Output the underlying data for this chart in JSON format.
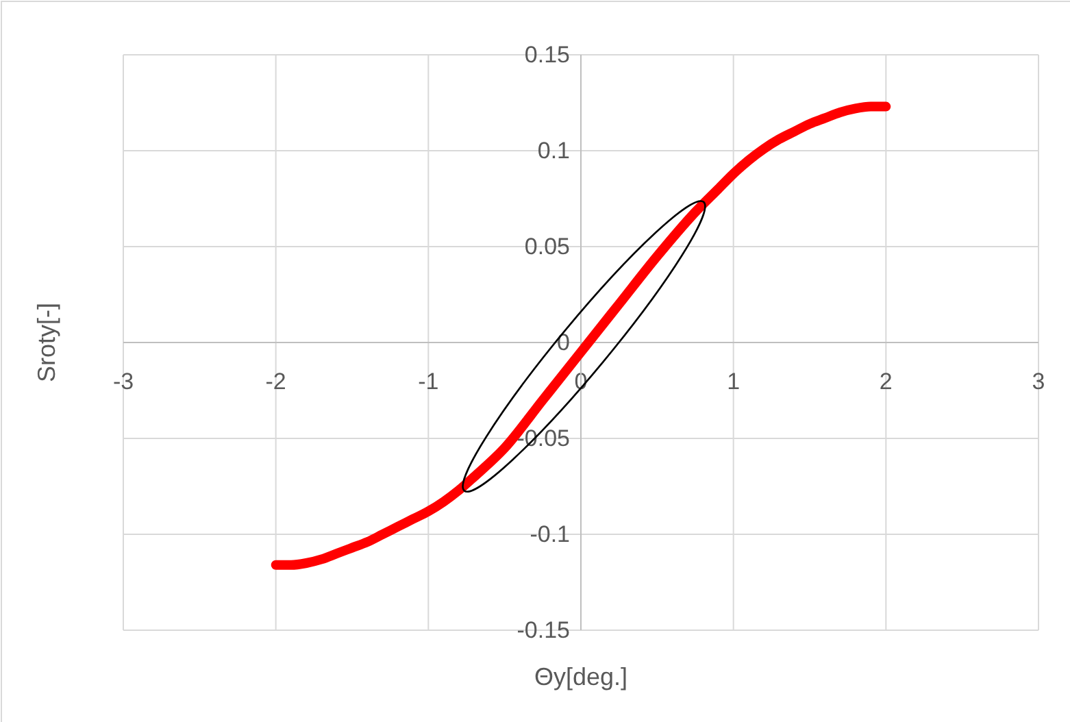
{
  "chart_data": {
    "type": "line",
    "xlabel": "Θy[deg.]",
    "ylabel": "Sroty[-]",
    "x": [
      -2,
      -1.9,
      -1.8,
      -1.7,
      -1.6,
      -1.5,
      -1.4,
      -1.3,
      -1.2,
      -1.1,
      -1,
      -0.9,
      -0.8,
      -0.7,
      -0.5,
      -0.25,
      0,
      0.25,
      0.5,
      0.75,
      0.9,
      1,
      1.1,
      1.2,
      1.3,
      1.4,
      1.5,
      1.6,
      1.7,
      1.8,
      1.9,
      2
    ],
    "series": [
      {
        "color": "#ff0000",
        "values": [
          -0.116,
          -0.116,
          -0.115,
          -0.113,
          -0.11,
          -0.107,
          -0.104,
          -0.1,
          -0.096,
          -0.092,
          -0.088,
          -0.083,
          -0.077,
          -0.07,
          -0.055,
          -0.03,
          -0.005,
          0.02,
          0.045,
          0.068,
          0.08,
          0.088,
          0.095,
          0.101,
          0.106,
          0.11,
          0.114,
          0.117,
          0.12,
          0.122,
          0.123,
          0.123
        ]
      }
    ],
    "xlim": [
      -3,
      3
    ],
    "xticks": [
      -3,
      -2,
      -1,
      0,
      1,
      2,
      3
    ],
    "ylim": [
      -0.15,
      0.15
    ],
    "yticks": [
      -0.15,
      -0.1,
      -0.05,
      0,
      0.05,
      0.1,
      0.15
    ],
    "grid": true,
    "marker": "none",
    "line_style": "solid"
  }
}
